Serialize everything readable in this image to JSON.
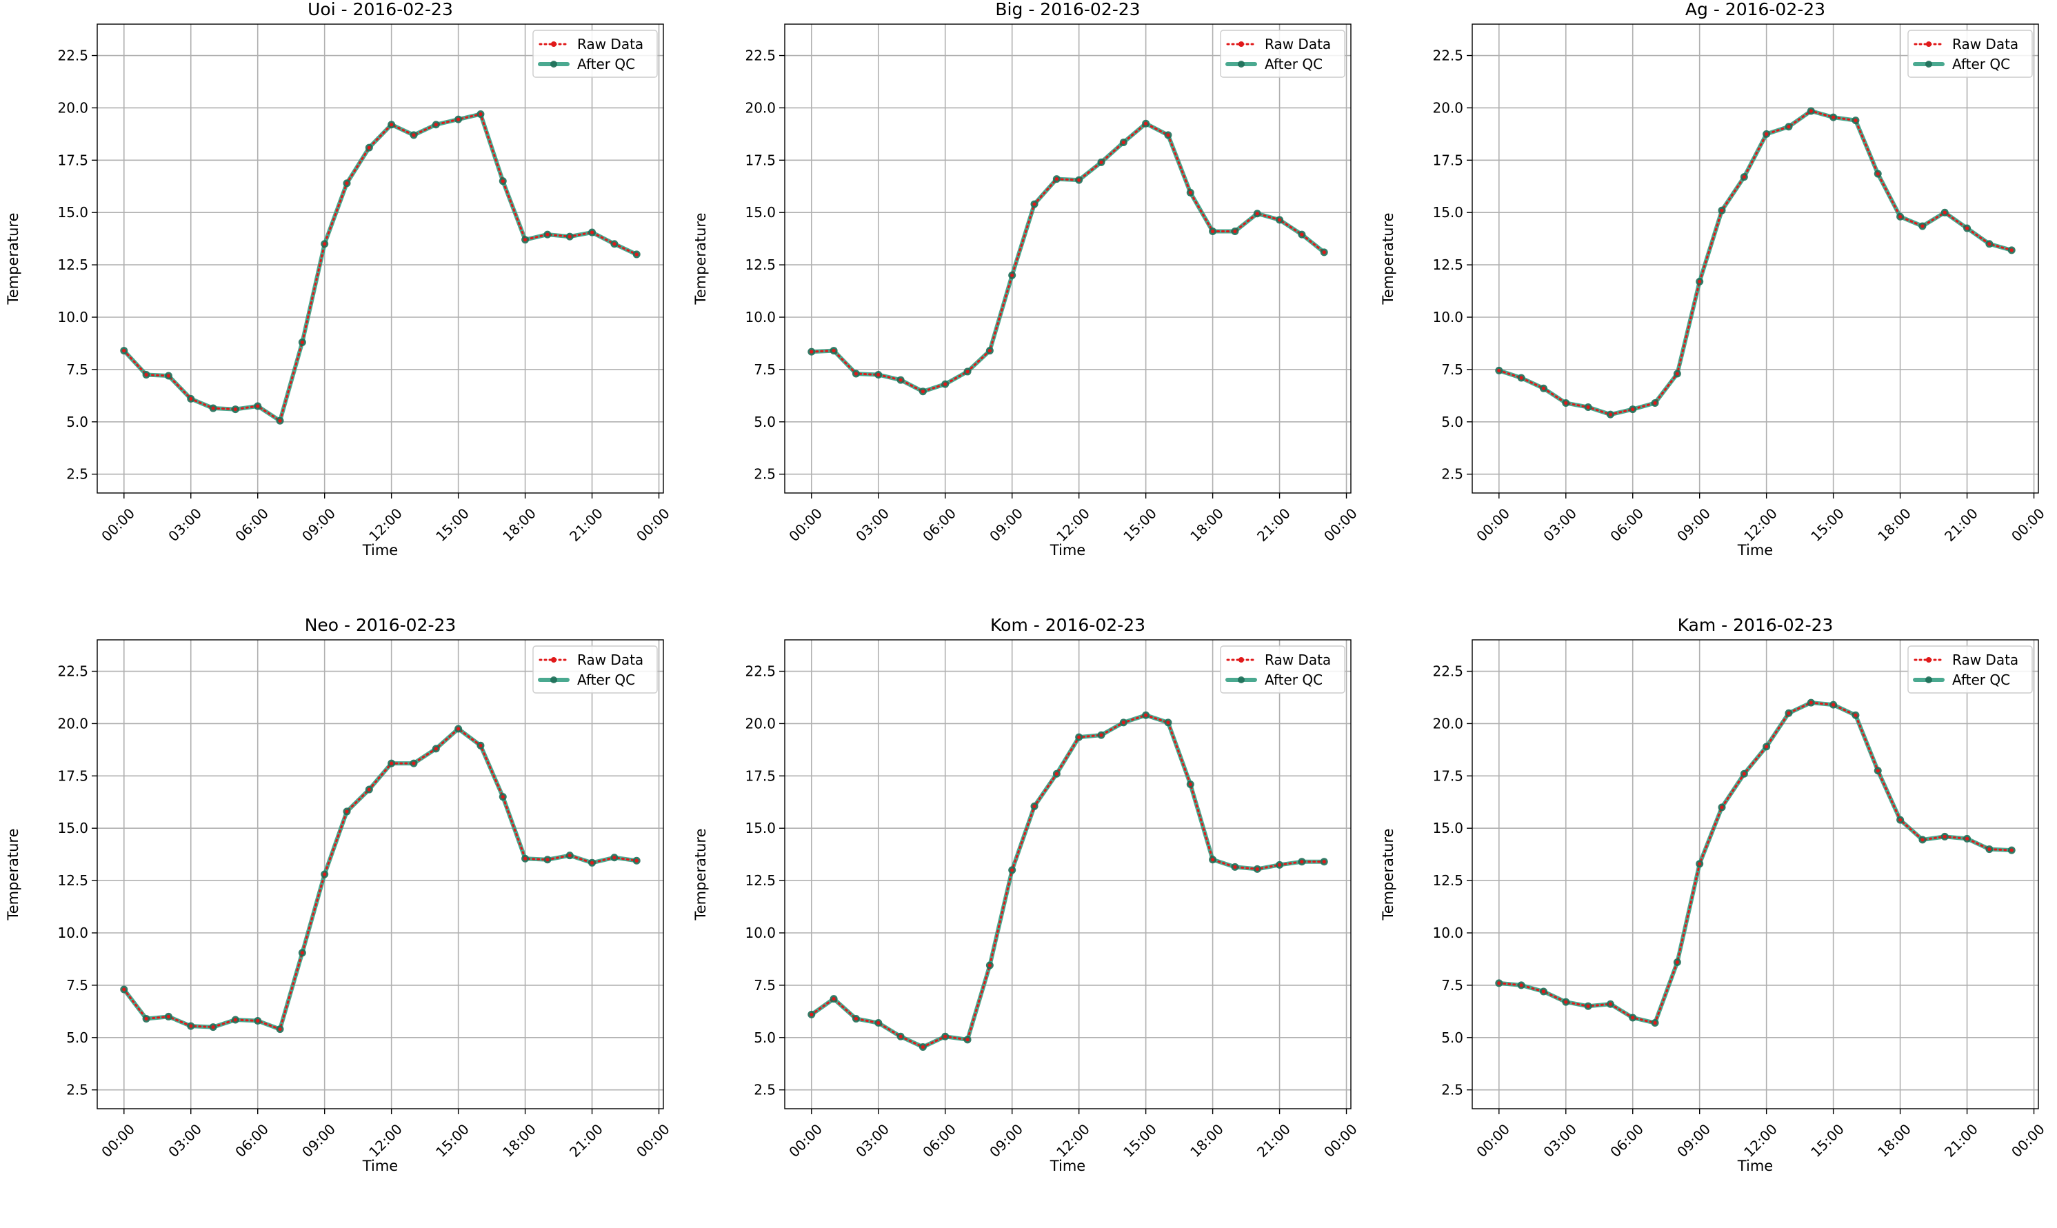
{
  "figure": {
    "legend_labels": {
      "raw": "Raw Data",
      "qc": "After QC"
    },
    "colors": {
      "raw": "#e0191a",
      "qc": "#2a9a7c",
      "grid": "#b0b0b0"
    },
    "legend_placement": "top-right"
  },
  "chart_data": [
    {
      "type": "line",
      "title": "Uoi - 2016-02-23",
      "xlabel": "Time",
      "ylabel": "Temperature",
      "x_ticks": [
        "00:00",
        "03:00",
        "06:00",
        "09:00",
        "12:00",
        "15:00",
        "18:00",
        "21:00",
        "00:00"
      ],
      "y_ticks": [
        "2.5",
        "5.0",
        "7.5",
        "10.0",
        "12.5",
        "15.0",
        "17.5",
        "20.0",
        "22.5"
      ],
      "xlim_hours": [
        -1.2,
        24.2
      ],
      "ylim": [
        1.6,
        24.0
      ],
      "grid": true,
      "hours": [
        0,
        1,
        2,
        3,
        4,
        5,
        6,
        7,
        8,
        9,
        10,
        11,
        12,
        13,
        14,
        15,
        16,
        17,
        18,
        19,
        20,
        21,
        22,
        23
      ],
      "series": [
        {
          "name": "Raw Data",
          "values": [
            8.4,
            7.25,
            7.2,
            6.1,
            5.65,
            5.6,
            5.75,
            5.05,
            8.8,
            13.5,
            16.4,
            18.1,
            19.2,
            18.7,
            19.2,
            19.45,
            19.7,
            16.5,
            13.7,
            13.95,
            13.85,
            14.05,
            13.5,
            13.0
          ]
        },
        {
          "name": "After QC",
          "values": [
            8.4,
            7.25,
            7.2,
            6.1,
            5.65,
            5.6,
            5.75,
            5.05,
            8.8,
            13.5,
            16.4,
            18.1,
            19.2,
            18.7,
            19.2,
            19.45,
            19.7,
            16.5,
            13.7,
            13.95,
            13.85,
            14.05,
            13.5,
            13.0
          ]
        }
      ]
    },
    {
      "type": "line",
      "title": "Big - 2016-02-23",
      "xlabel": "Time",
      "ylabel": "Temperature",
      "x_ticks": [
        "00:00",
        "03:00",
        "06:00",
        "09:00",
        "12:00",
        "15:00",
        "18:00",
        "21:00",
        "00:00"
      ],
      "y_ticks": [
        "2.5",
        "5.0",
        "7.5",
        "10.0",
        "12.5",
        "15.0",
        "17.5",
        "20.0",
        "22.5"
      ],
      "xlim_hours": [
        -1.2,
        24.2
      ],
      "ylim": [
        1.6,
        24.0
      ],
      "grid": true,
      "hours": [
        0,
        1,
        2,
        3,
        4,
        5,
        6,
        7,
        8,
        9,
        10,
        11,
        12,
        13,
        14,
        15,
        16,
        17,
        18,
        19,
        20,
        21,
        22,
        23
      ],
      "series": [
        {
          "name": "Raw Data",
          "values": [
            8.35,
            8.4,
            7.3,
            7.25,
            7.0,
            6.45,
            6.8,
            7.4,
            8.4,
            12.0,
            15.4,
            16.6,
            16.55,
            17.4,
            18.35,
            19.25,
            18.7,
            15.95,
            14.1,
            14.1,
            14.95,
            14.65,
            13.95,
            13.1
          ]
        },
        {
          "name": "After QC",
          "values": [
            8.35,
            8.4,
            7.3,
            7.25,
            7.0,
            6.45,
            6.8,
            7.4,
            8.4,
            12.0,
            15.4,
            16.6,
            16.55,
            17.4,
            18.35,
            19.25,
            18.7,
            15.95,
            14.1,
            14.1,
            14.95,
            14.65,
            13.95,
            13.1
          ]
        }
      ]
    },
    {
      "type": "line",
      "title": "Ag - 2016-02-23",
      "xlabel": "Time",
      "ylabel": "Temperature",
      "x_ticks": [
        "00:00",
        "03:00",
        "06:00",
        "09:00",
        "12:00",
        "15:00",
        "18:00",
        "21:00",
        "00:00"
      ],
      "y_ticks": [
        "2.5",
        "5.0",
        "7.5",
        "10.0",
        "12.5",
        "15.0",
        "17.5",
        "20.0",
        "22.5"
      ],
      "xlim_hours": [
        -1.2,
        24.2
      ],
      "ylim": [
        1.6,
        24.0
      ],
      "grid": true,
      "hours": [
        0,
        1,
        2,
        3,
        4,
        5,
        6,
        7,
        8,
        9,
        10,
        11,
        12,
        13,
        14,
        15,
        16,
        17,
        18,
        19,
        20,
        21,
        22,
        23
      ],
      "series": [
        {
          "name": "Raw Data",
          "values": [
            7.45,
            7.1,
            6.6,
            5.9,
            5.7,
            5.35,
            5.6,
            5.9,
            7.3,
            11.7,
            15.1,
            16.7,
            18.75,
            19.1,
            19.85,
            19.55,
            19.4,
            16.85,
            14.8,
            14.35,
            15.0,
            14.25,
            13.5,
            13.2
          ]
        },
        {
          "name": "After QC",
          "values": [
            7.45,
            7.1,
            6.6,
            5.9,
            5.7,
            5.35,
            5.6,
            5.9,
            7.3,
            11.7,
            15.1,
            16.7,
            18.75,
            19.1,
            19.85,
            19.55,
            19.4,
            16.85,
            14.8,
            14.35,
            15.0,
            14.25,
            13.5,
            13.2
          ]
        }
      ]
    },
    {
      "type": "line",
      "title": "Neo - 2016-02-23",
      "xlabel": "Time",
      "ylabel": "Temperature",
      "x_ticks": [
        "00:00",
        "03:00",
        "06:00",
        "09:00",
        "12:00",
        "15:00",
        "18:00",
        "21:00",
        "00:00"
      ],
      "y_ticks": [
        "2.5",
        "5.0",
        "7.5",
        "10.0",
        "12.5",
        "15.0",
        "17.5",
        "20.0",
        "22.5"
      ],
      "xlim_hours": [
        -1.2,
        24.2
      ],
      "ylim": [
        1.6,
        24.0
      ],
      "grid": true,
      "hours": [
        0,
        1,
        2,
        3,
        4,
        5,
        6,
        7,
        8,
        9,
        10,
        11,
        12,
        13,
        14,
        15,
        16,
        17,
        18,
        19,
        20,
        21,
        22,
        23
      ],
      "series": [
        {
          "name": "Raw Data",
          "values": [
            7.3,
            5.9,
            6.0,
            5.55,
            5.5,
            5.85,
            5.8,
            5.4,
            9.05,
            12.8,
            15.8,
            16.85,
            18.1,
            18.1,
            18.8,
            19.75,
            18.95,
            16.5,
            13.55,
            13.5,
            13.7,
            13.35,
            13.6,
            13.45
          ]
        },
        {
          "name": "After QC",
          "values": [
            7.3,
            5.9,
            6.0,
            5.55,
            5.5,
            5.85,
            5.8,
            5.4,
            9.05,
            12.8,
            15.8,
            16.85,
            18.1,
            18.1,
            18.8,
            19.75,
            18.95,
            16.5,
            13.55,
            13.5,
            13.7,
            13.35,
            13.6,
            13.45
          ]
        }
      ]
    },
    {
      "type": "line",
      "title": "Kom - 2016-02-23",
      "xlabel": "Time",
      "ylabel": "Temperature",
      "x_ticks": [
        "00:00",
        "03:00",
        "06:00",
        "09:00",
        "12:00",
        "15:00",
        "18:00",
        "21:00",
        "00:00"
      ],
      "y_ticks": [
        "2.5",
        "5.0",
        "7.5",
        "10.0",
        "12.5",
        "15.0",
        "17.5",
        "20.0",
        "22.5"
      ],
      "xlim_hours": [
        -1.2,
        24.2
      ],
      "ylim": [
        1.6,
        24.0
      ],
      "grid": true,
      "hours": [
        0,
        1,
        2,
        3,
        4,
        5,
        6,
        7,
        8,
        9,
        10,
        11,
        12,
        13,
        14,
        15,
        16,
        17,
        18,
        19,
        20,
        21,
        22,
        23
      ],
      "series": [
        {
          "name": "Raw Data",
          "values": [
            6.1,
            6.85,
            5.9,
            5.7,
            5.05,
            4.55,
            5.05,
            4.9,
            8.45,
            13.0,
            16.05,
            17.6,
            19.35,
            19.45,
            20.05,
            20.4,
            20.05,
            17.1,
            13.5,
            13.15,
            13.05,
            13.25,
            13.4,
            13.4
          ]
        },
        {
          "name": "After QC",
          "values": [
            6.1,
            6.85,
            5.9,
            5.7,
            5.05,
            4.55,
            5.05,
            4.9,
            8.45,
            13.0,
            16.05,
            17.6,
            19.35,
            19.45,
            20.05,
            20.4,
            20.05,
            17.1,
            13.5,
            13.15,
            13.05,
            13.25,
            13.4,
            13.4
          ]
        }
      ]
    },
    {
      "type": "line",
      "title": "Kam - 2016-02-23",
      "xlabel": "Time",
      "ylabel": "Temperature",
      "x_ticks": [
        "00:00",
        "03:00",
        "06:00",
        "09:00",
        "12:00",
        "15:00",
        "18:00",
        "21:00",
        "00:00"
      ],
      "y_ticks": [
        "2.5",
        "5.0",
        "7.5",
        "10.0",
        "12.5",
        "15.0",
        "17.5",
        "20.0",
        "22.5"
      ],
      "xlim_hours": [
        -1.2,
        24.2
      ],
      "ylim": [
        1.6,
        24.0
      ],
      "grid": true,
      "hours": [
        0,
        1,
        2,
        3,
        4,
        5,
        6,
        7,
        8,
        9,
        10,
        11,
        12,
        13,
        14,
        15,
        16,
        17,
        18,
        19,
        20,
        21,
        22,
        23
      ],
      "series": [
        {
          "name": "Raw Data",
          "values": [
            7.6,
            7.5,
            7.2,
            6.7,
            6.5,
            6.6,
            5.95,
            5.7,
            8.6,
            13.3,
            16.0,
            17.6,
            18.9,
            20.5,
            21.0,
            20.9,
            20.4,
            17.75,
            15.4,
            14.45,
            14.6,
            14.5,
            14.0,
            13.95
          ]
        },
        {
          "name": "After QC",
          "values": [
            7.6,
            7.5,
            7.2,
            6.7,
            6.5,
            6.6,
            5.95,
            5.7,
            8.6,
            13.3,
            16.0,
            17.6,
            18.9,
            20.5,
            21.0,
            20.9,
            20.4,
            17.75,
            15.4,
            14.45,
            14.6,
            14.5,
            14.0,
            13.95
          ]
        }
      ]
    }
  ]
}
